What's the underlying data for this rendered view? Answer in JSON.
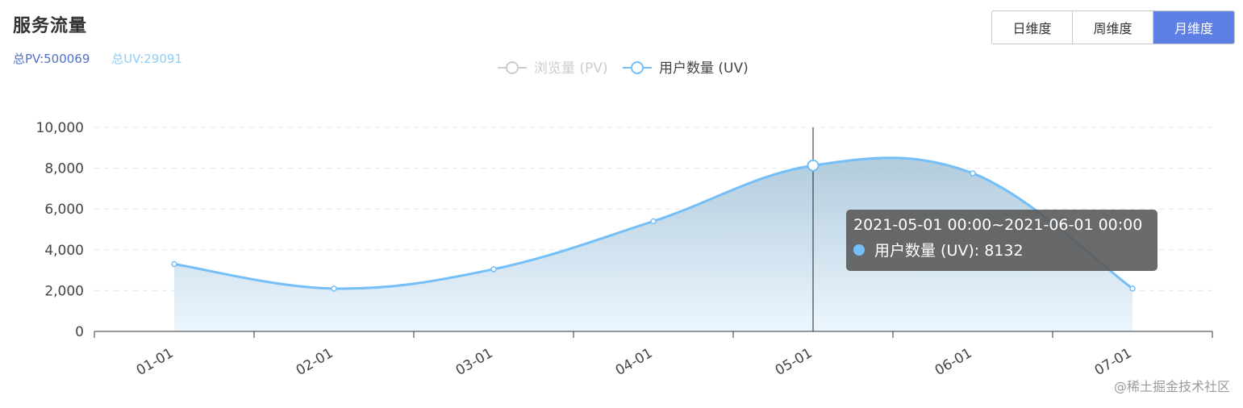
{
  "header": {
    "title": "服务流量",
    "total_pv": "总PV:500069",
    "total_uv": "总UV:29091"
  },
  "toggle": {
    "options": [
      {
        "label": "日维度",
        "active": false
      },
      {
        "label": "周维度",
        "active": false
      },
      {
        "label": "月维度",
        "active": true
      }
    ]
  },
  "chart_data": {
    "type": "area",
    "legend": [
      {
        "name": "浏览量 (PV)",
        "active": false,
        "color": "#cccccc"
      },
      {
        "name": "用户数量 (UV)",
        "active": true,
        "color": "#74bff7"
      }
    ],
    "legend_position": "top-center",
    "categories": [
      "01-01",
      "02-01",
      "03-01",
      "04-01",
      "05-01",
      "06-01",
      "07-01"
    ],
    "series": [
      {
        "name": "用户数量 (UV)",
        "values": [
          3300,
          2100,
          3050,
          5400,
          8132,
          7750,
          2100
        ],
        "color": "#74bff7"
      }
    ],
    "yticks": [
      "0",
      "2,000",
      "4,000",
      "6,000",
      "8,000",
      "10,000"
    ],
    "ylim": [
      0,
      10000
    ],
    "grid": "dashed horizontal",
    "tooltip": {
      "title": "2021-05-01 00:00~2021-06-01 00:00",
      "series_label": "用户数量 (UV): 8132",
      "index": 4
    }
  },
  "watermark": "@稀土掘金技术社区"
}
